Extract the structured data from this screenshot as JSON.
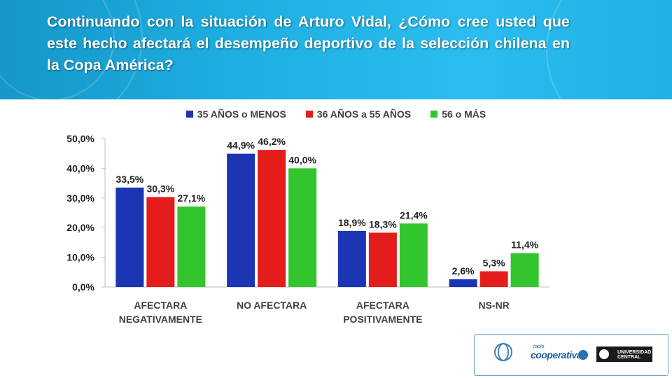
{
  "title": "Continuando con la situación de Arturo Vidal, ¿Cómo cree usted que este hecho afectará el desempeño deportivo de la selección chilena en la Copa América?",
  "chart_data": {
    "type": "bar",
    "categories": [
      [
        "AFECTARA",
        "NEGATIVAMENTE"
      ],
      [
        "NO AFECTARA"
      ],
      [
        "AFECTARA",
        "POSITIVAMENTE"
      ],
      [
        "NS-NR"
      ]
    ],
    "series": [
      {
        "name": "35 AÑOS o MENOS",
        "color": "#1c35b5",
        "values": [
          33.5,
          44.9,
          18.9,
          2.6
        ],
        "labels": [
          "33,5%",
          "44,9%",
          "18,9%",
          "2,6%"
        ]
      },
      {
        "name": "36 AÑOS a 55 AÑOS",
        "color": "#e41c1c",
        "values": [
          30.3,
          46.2,
          18.3,
          5.3
        ],
        "labels": [
          "30,3%",
          "46,2%",
          "18,3%",
          "5,3%"
        ]
      },
      {
        "name": "56 o MÁS",
        "color": "#33c52d",
        "values": [
          27.1,
          40.0,
          21.4,
          11.4
        ],
        "labels": [
          "27,1%",
          "40,0%",
          "21,4%",
          "11,4%"
        ]
      }
    ],
    "ylim": [
      0,
      50
    ],
    "yticks": [
      "0,0%",
      "10,0%",
      "20,0%",
      "30,0%",
      "40,0%",
      "50,0%"
    ],
    "ytick_values": [
      0,
      10,
      20,
      30,
      40,
      50
    ],
    "grid": false,
    "legend": "top-center"
  },
  "logos": {
    "radio_small": "radio",
    "cooperativa": "cooperativa",
    "university": "UNIVERSIDAD CENTRAL"
  }
}
